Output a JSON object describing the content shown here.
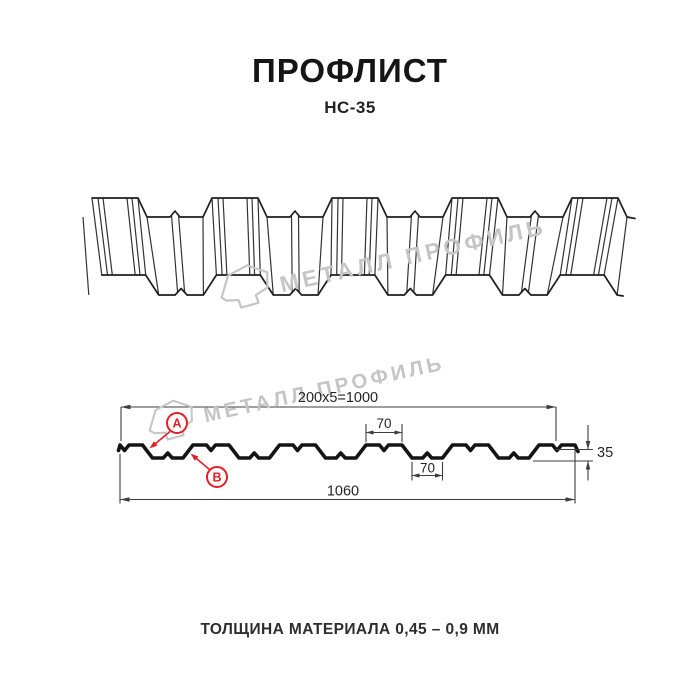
{
  "header": {
    "title": "ПРОФЛИСТ",
    "subtitle": "НС-35"
  },
  "watermark": {
    "text": "МЕТАЛЛ ПРОФИЛЬ",
    "color": "#c5c5c5"
  },
  "drawing": {
    "profile_name": "НС-35",
    "dimensions": {
      "module_width": "200x5=1000",
      "rib_top_width": "70",
      "rib_bottom_width": "70",
      "overall_width": "1060",
      "profile_height": "35"
    },
    "markers": {
      "a": "А",
      "b": "В"
    },
    "colors": {
      "line": "#141414",
      "dimension": "#3d3d3d",
      "accent": "#e31e24"
    }
  },
  "footer": {
    "text": "ТОЛЩИНА МАТЕРИАЛА 0,45 – 0,9 ММ"
  }
}
